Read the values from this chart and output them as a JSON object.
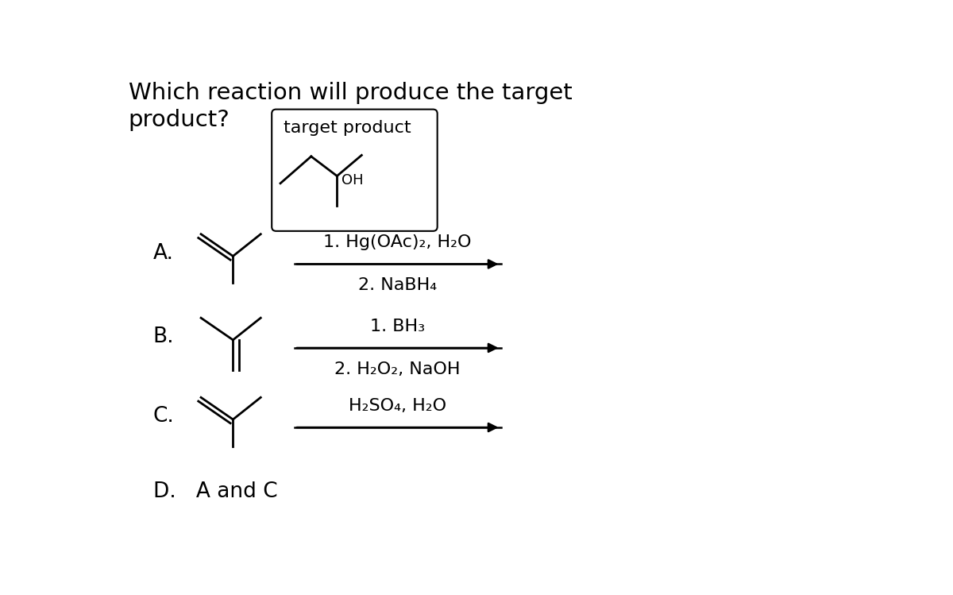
{
  "title_line1": "Which reaction will produce the target",
  "title_line2": "product?",
  "bg_color": "#ffffff",
  "text_color": "#000000",
  "font_size_title": 21,
  "font_size_label": 19,
  "font_size_reagent": 16,
  "font_size_box_label": 16,
  "box_label": "target product",
  "option_D": "D.   A and C",
  "reagent_A_line1": "1. Hg(OAc)₂, H₂O",
  "reagent_A_line2": "2. NaBH₄",
  "reagent_B_line1": "1. BH₃",
  "reagent_B_line2": "2. H₂O₂, NaOH",
  "reagent_C": "H₂SO₄, H₂O"
}
